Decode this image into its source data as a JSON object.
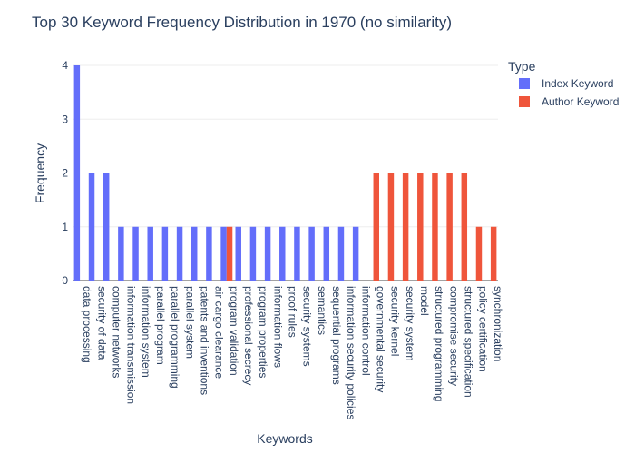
{
  "chart_data": {
    "type": "bar",
    "title": "Top 30 Keyword Frequency Distribution in 1970 (no similarity)",
    "xlabel": "Keywords",
    "ylabel": "Frequency",
    "ylim": [
      0,
      4
    ],
    "yticks": [
      0,
      1,
      2,
      3,
      4
    ],
    "grid": true,
    "barmode": "group",
    "legend_title": "Type",
    "legend_position": "top-right",
    "categories": [
      "data processing",
      "security of data",
      "computer networks",
      "information transmission",
      "information system",
      "parallel program",
      "parallel programming",
      "parallel system",
      "patents and inventions",
      "air cargo clearance",
      "program validation",
      "professional secrecy",
      "program properties",
      "information flows",
      "proof rules",
      "security systems",
      "semantics",
      "sequential programs",
      "information security policies",
      "information control",
      "governmental security",
      "security kernel",
      "security system",
      "model",
      "structured programming",
      "compromise security",
      "structured specification",
      "policy certification",
      "synchronization"
    ],
    "series": [
      {
        "name": "Index Keyword",
        "color": "#636efa",
        "values": [
          4,
          2,
          2,
          1,
          1,
          1,
          1,
          1,
          1,
          1,
          1,
          1,
          1,
          1,
          1,
          1,
          1,
          1,
          1,
          1,
          null,
          null,
          null,
          null,
          null,
          null,
          null,
          null,
          null
        ]
      },
      {
        "name": "Author Keyword",
        "color": "#ef553b",
        "values": [
          null,
          null,
          null,
          null,
          null,
          null,
          null,
          null,
          null,
          null,
          1,
          null,
          null,
          null,
          null,
          null,
          null,
          null,
          null,
          null,
          2,
          2,
          2,
          2,
          2,
          2,
          2,
          1,
          1
        ]
      }
    ]
  }
}
